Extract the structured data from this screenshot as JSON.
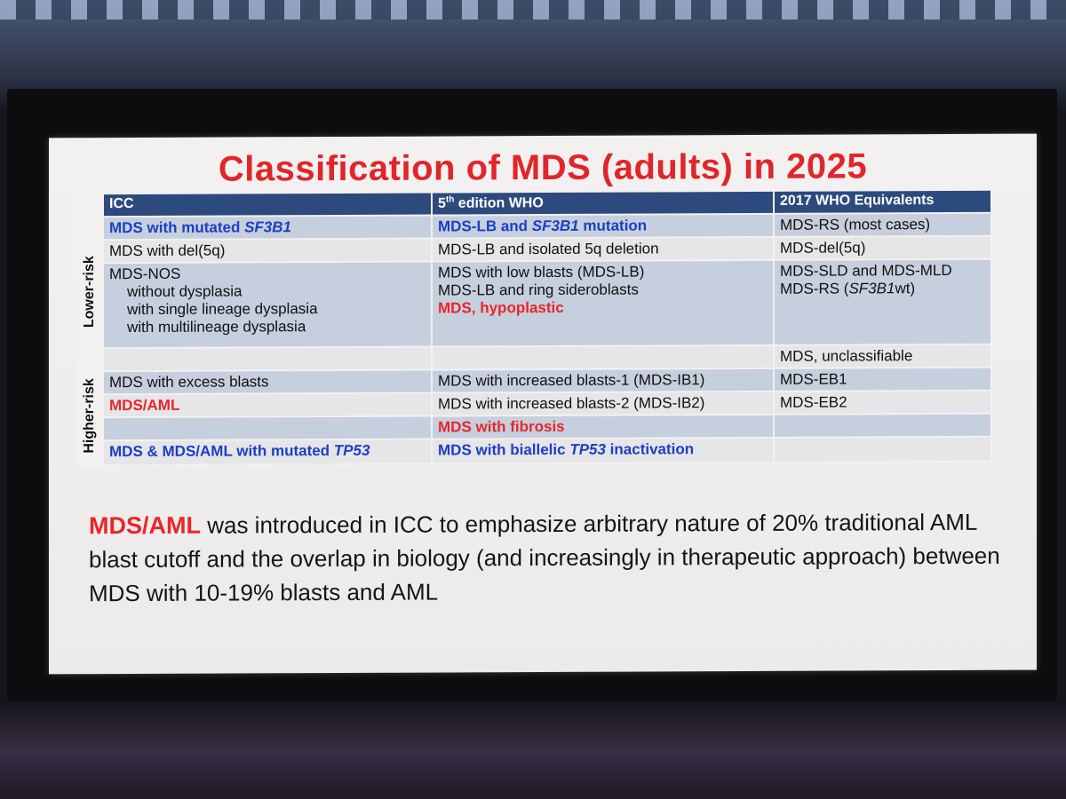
{
  "title": "Classification of MDS (adults) in 2025",
  "table": {
    "headers": [
      [
        "ICC"
      ],
      [
        "5",
        "th",
        " edition WHO"
      ],
      [
        "2017 WHO Equivalents"
      ]
    ],
    "groups": [
      "Lower-risk",
      "Higher-risk"
    ],
    "rows": [
      [
        [
          [
            "MDS with mutated ",
            "SF3B1"
          ]
        ],
        [
          [
            "MDS-LB and ",
            "SF3B1",
            " mutation"
          ]
        ],
        [
          [
            "MDS-RS (most cases)"
          ]
        ]
      ],
      [
        [
          [
            "MDS with del(5q)"
          ]
        ],
        [
          [
            "MDS-LB and isolated 5q deletion"
          ]
        ],
        [
          [
            "MDS-del(5q)"
          ]
        ]
      ],
      [
        [
          [
            "MDS-NOS"
          ],
          [
            "without dysplasia"
          ],
          [
            "with single lineage dysplasia"
          ],
          [
            "with multilineage dysplasia"
          ]
        ],
        [
          [
            "MDS with low blasts (MDS-LB)"
          ],
          [
            "MDS-LB and ring sideroblasts"
          ],
          [
            "MDS, hypoplastic"
          ]
        ],
        [
          [
            "MDS-SLD and MDS-MLD"
          ],
          [
            "MDS-RS (",
            "SF3B1",
            "wt)"
          ]
        ]
      ],
      [
        [],
        [],
        [
          [
            "MDS, unclassifiable"
          ]
        ]
      ],
      [
        [
          [
            "MDS with excess blasts"
          ]
        ],
        [
          [
            "MDS with increased blasts-1 (MDS-IB1)"
          ]
        ],
        [
          [
            "MDS-EB1"
          ]
        ]
      ],
      [
        [
          [
            "MDS/AML"
          ]
        ],
        [
          [
            "MDS with increased blasts-2 (MDS-IB2)"
          ]
        ],
        [
          [
            "MDS-EB2"
          ]
        ]
      ],
      [
        [],
        [
          [
            "MDS with fibrosis"
          ]
        ],
        []
      ],
      [
        [
          [
            "MDS & MDS/AML with mutated ",
            "TP53"
          ]
        ],
        [
          [
            "MDS with biallelic ",
            "TP53",
            " inactivation"
          ]
        ],
        []
      ]
    ]
  },
  "note": [
    "MDS/AML",
    " was introduced in ICC to emphasize arbitrary nature of 20% traditional AML blast cutoff and the overlap in biology (and increasingly in therapeutic approach) between MDS with 10-19% blasts and AML"
  ]
}
